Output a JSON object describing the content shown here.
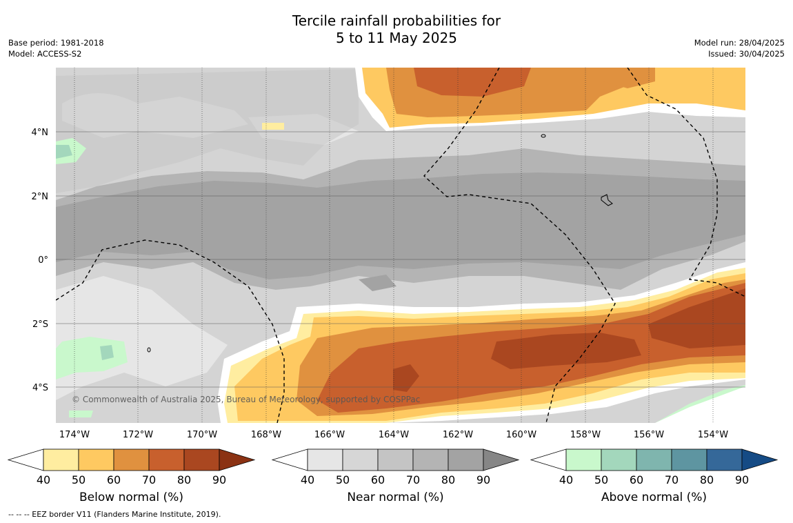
{
  "title": {
    "line1": "Tercile rainfall probabilities for",
    "line2": "5 to 11 May 2025"
  },
  "meta": {
    "base_period": "Base period: 1981-2018",
    "model": "Model: ACCESS-S2",
    "model_run": "Model run: 28/04/2025",
    "issued": "Issued: 30/04/2025"
  },
  "map": {
    "lat_labels": [
      "4°N",
      "2°N",
      "0°",
      "2°S",
      "4°S"
    ],
    "lon_labels": [
      "174°W",
      "172°W",
      "170°W",
      "168°W",
      "166°W",
      "164°W",
      "162°W",
      "160°W",
      "158°W",
      "156°W",
      "154°W"
    ],
    "copyright": "© Commonwealth of Australia 2025, Bureau of Meteorology, supported by COSPPac"
  },
  "colorbars": [
    {
      "name": "below",
      "label": "Below normal (%)",
      "ticks": [
        "40",
        "50",
        "60",
        "70",
        "80",
        "90"
      ],
      "colors": [
        "#ffeda0",
        "#fec961",
        "#e0913f",
        "#c8602d",
        "#aa4720",
        "#8b3213"
      ]
    },
    {
      "name": "near",
      "label": "Near normal (%)",
      "ticks": [
        "40",
        "50",
        "60",
        "70",
        "80",
        "90"
      ],
      "colors": [
        "#e6e6e6",
        "#d6d6d6",
        "#c4c4c4",
        "#b4b4b4",
        "#a3a3a3",
        "#868686"
      ]
    },
    {
      "name": "above",
      "label": "Above normal (%)",
      "ticks": [
        "40",
        "50",
        "60",
        "70",
        "80",
        "90"
      ],
      "colors": [
        "#c9f8cc",
        "#a3d7bc",
        "#7fb5ae",
        "#5e95a1",
        "#356899",
        "#154b85"
      ]
    }
  ],
  "footer": "--  --  -- EEZ border V11 (Flanders Marine Institute, 2019)."
}
